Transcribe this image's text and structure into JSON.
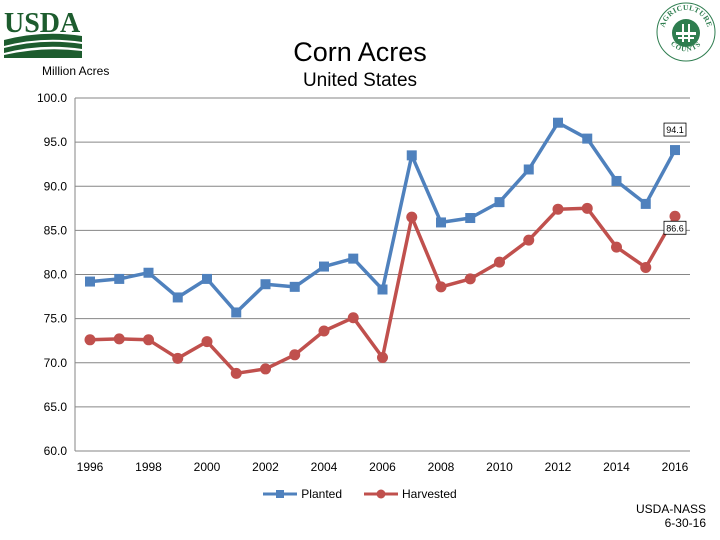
{
  "header": {
    "agency_logo_text": "USDA",
    "census_logo_text": "AGRICULTURE COUNTS"
  },
  "chart_data": {
    "type": "line",
    "title": "Corn Acres",
    "subtitle": "United States",
    "ylabel": "Million Acres",
    "xlabel": "",
    "ylim": [
      60.0,
      100.0
    ],
    "yticks": [
      "60.0",
      "65.0",
      "70.0",
      "75.0",
      "80.0",
      "85.0",
      "90.0",
      "95.0",
      "100.0"
    ],
    "xlim": [
      1996,
      2016
    ],
    "xticks": [
      "1996",
      "1998",
      "2000",
      "2002",
      "2004",
      "2006",
      "2008",
      "2010",
      "2012",
      "2014",
      "2016"
    ],
    "x": [
      1996,
      1997,
      1998,
      1999,
      2000,
      2001,
      2002,
      2003,
      2004,
      2005,
      2006,
      2007,
      2008,
      2009,
      2010,
      2011,
      2012,
      2013,
      2014,
      2015,
      2016
    ],
    "grid": true,
    "legend_position": "bottom",
    "series": [
      {
        "name": "Planted",
        "color": "#4f81bd",
        "marker": "square",
        "values": [
          79.2,
          79.5,
          80.2,
          77.4,
          79.5,
          75.7,
          78.9,
          78.6,
          80.9,
          81.8,
          78.3,
          93.5,
          85.9,
          86.4,
          88.2,
          91.9,
          97.2,
          95.4,
          90.6,
          88.0,
          94.1
        ],
        "end_label": "94.1"
      },
      {
        "name": "Harvested",
        "color": "#c0504d",
        "marker": "circle",
        "values": [
          72.6,
          72.7,
          72.6,
          70.5,
          72.4,
          68.8,
          69.3,
          70.9,
          73.6,
          75.1,
          70.6,
          86.5,
          78.6,
          79.5,
          81.4,
          83.9,
          87.4,
          87.5,
          83.1,
          80.8,
          86.6
        ],
        "end_label": "86.6"
      }
    ]
  },
  "footer": {
    "source_line1": "USDA-NASS",
    "source_line2": "6-30-16"
  }
}
